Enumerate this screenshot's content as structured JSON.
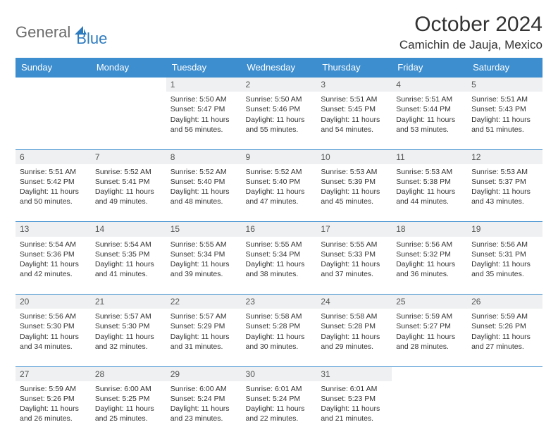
{
  "logo": {
    "general": "General",
    "blue": "Blue"
  },
  "title": "October 2024",
  "location": "Camichin de Jauja, Mexico",
  "colors": {
    "header_bg": "#3d8ecf",
    "header_text": "#ffffff",
    "border": "#3d8ecf",
    "daynum_bg": "#eef0f1",
    "logo_gray": "#6b6b6b",
    "logo_blue": "#2d7bbf"
  },
  "weekdays": [
    "Sunday",
    "Monday",
    "Tuesday",
    "Wednesday",
    "Thursday",
    "Friday",
    "Saturday"
  ],
  "weeks": [
    {
      "nums": [
        "",
        "",
        "1",
        "2",
        "3",
        "4",
        "5"
      ],
      "cells": [
        null,
        null,
        {
          "sunrise": "5:50 AM",
          "sunset": "5:47 PM",
          "daylight": "11 hours and 56 minutes."
        },
        {
          "sunrise": "5:50 AM",
          "sunset": "5:46 PM",
          "daylight": "11 hours and 55 minutes."
        },
        {
          "sunrise": "5:51 AM",
          "sunset": "5:45 PM",
          "daylight": "11 hours and 54 minutes."
        },
        {
          "sunrise": "5:51 AM",
          "sunset": "5:44 PM",
          "daylight": "11 hours and 53 minutes."
        },
        {
          "sunrise": "5:51 AM",
          "sunset": "5:43 PM",
          "daylight": "11 hours and 51 minutes."
        }
      ]
    },
    {
      "nums": [
        "6",
        "7",
        "8",
        "9",
        "10",
        "11",
        "12"
      ],
      "cells": [
        {
          "sunrise": "5:51 AM",
          "sunset": "5:42 PM",
          "daylight": "11 hours and 50 minutes."
        },
        {
          "sunrise": "5:52 AM",
          "sunset": "5:41 PM",
          "daylight": "11 hours and 49 minutes."
        },
        {
          "sunrise": "5:52 AM",
          "sunset": "5:40 PM",
          "daylight": "11 hours and 48 minutes."
        },
        {
          "sunrise": "5:52 AM",
          "sunset": "5:40 PM",
          "daylight": "11 hours and 47 minutes."
        },
        {
          "sunrise": "5:53 AM",
          "sunset": "5:39 PM",
          "daylight": "11 hours and 45 minutes."
        },
        {
          "sunrise": "5:53 AM",
          "sunset": "5:38 PM",
          "daylight": "11 hours and 44 minutes."
        },
        {
          "sunrise": "5:53 AM",
          "sunset": "5:37 PM",
          "daylight": "11 hours and 43 minutes."
        }
      ]
    },
    {
      "nums": [
        "13",
        "14",
        "15",
        "16",
        "17",
        "18",
        "19"
      ],
      "cells": [
        {
          "sunrise": "5:54 AM",
          "sunset": "5:36 PM",
          "daylight": "11 hours and 42 minutes."
        },
        {
          "sunrise": "5:54 AM",
          "sunset": "5:35 PM",
          "daylight": "11 hours and 41 minutes."
        },
        {
          "sunrise": "5:55 AM",
          "sunset": "5:34 PM",
          "daylight": "11 hours and 39 minutes."
        },
        {
          "sunrise": "5:55 AM",
          "sunset": "5:34 PM",
          "daylight": "11 hours and 38 minutes."
        },
        {
          "sunrise": "5:55 AM",
          "sunset": "5:33 PM",
          "daylight": "11 hours and 37 minutes."
        },
        {
          "sunrise": "5:56 AM",
          "sunset": "5:32 PM",
          "daylight": "11 hours and 36 minutes."
        },
        {
          "sunrise": "5:56 AM",
          "sunset": "5:31 PM",
          "daylight": "11 hours and 35 minutes."
        }
      ]
    },
    {
      "nums": [
        "20",
        "21",
        "22",
        "23",
        "24",
        "25",
        "26"
      ],
      "cells": [
        {
          "sunrise": "5:56 AM",
          "sunset": "5:30 PM",
          "daylight": "11 hours and 34 minutes."
        },
        {
          "sunrise": "5:57 AM",
          "sunset": "5:30 PM",
          "daylight": "11 hours and 32 minutes."
        },
        {
          "sunrise": "5:57 AM",
          "sunset": "5:29 PM",
          "daylight": "11 hours and 31 minutes."
        },
        {
          "sunrise": "5:58 AM",
          "sunset": "5:28 PM",
          "daylight": "11 hours and 30 minutes."
        },
        {
          "sunrise": "5:58 AM",
          "sunset": "5:28 PM",
          "daylight": "11 hours and 29 minutes."
        },
        {
          "sunrise": "5:59 AM",
          "sunset": "5:27 PM",
          "daylight": "11 hours and 28 minutes."
        },
        {
          "sunrise": "5:59 AM",
          "sunset": "5:26 PM",
          "daylight": "11 hours and 27 minutes."
        }
      ]
    },
    {
      "nums": [
        "27",
        "28",
        "29",
        "30",
        "31",
        "",
        ""
      ],
      "cells": [
        {
          "sunrise": "5:59 AM",
          "sunset": "5:26 PM",
          "daylight": "11 hours and 26 minutes."
        },
        {
          "sunrise": "6:00 AM",
          "sunset": "5:25 PM",
          "daylight": "11 hours and 25 minutes."
        },
        {
          "sunrise": "6:00 AM",
          "sunset": "5:24 PM",
          "daylight": "11 hours and 23 minutes."
        },
        {
          "sunrise": "6:01 AM",
          "sunset": "5:24 PM",
          "daylight": "11 hours and 22 minutes."
        },
        {
          "sunrise": "6:01 AM",
          "sunset": "5:23 PM",
          "daylight": "11 hours and 21 minutes."
        },
        null,
        null
      ]
    }
  ],
  "labels": {
    "sunrise": "Sunrise: ",
    "sunset": "Sunset: ",
    "daylight": "Daylight: "
  }
}
